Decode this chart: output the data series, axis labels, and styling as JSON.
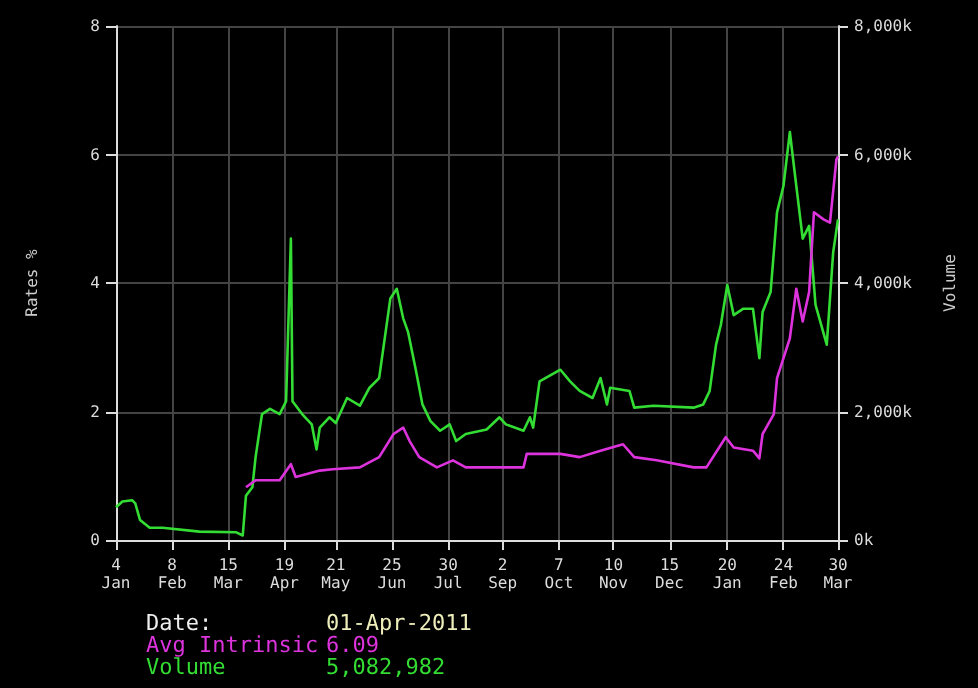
{
  "chart_data": {
    "type": "line",
    "ylabel": "Rates %",
    "y2label": "Volume",
    "xlim": [
      "2010-01-04",
      "2011-03-30"
    ],
    "xticks": [
      {
        "value": "2010-01-04",
        "label": "4\nJan"
      },
      {
        "value": "2010-02-08",
        "label": "8\nFeb"
      },
      {
        "value": "2010-03-15",
        "label": "15\nMar"
      },
      {
        "value": "2010-04-19",
        "label": "19\nApr"
      },
      {
        "value": "2010-05-21",
        "label": "21\nMay"
      },
      {
        "value": "2010-06-25",
        "label": "25\nJun"
      },
      {
        "value": "2010-07-30",
        "label": "30\nJul"
      },
      {
        "value": "2010-09-02",
        "label": "2\nSep"
      },
      {
        "value": "2010-10-07",
        "label": "7\nOct"
      },
      {
        "value": "2010-11-10",
        "label": "10\nNov"
      },
      {
        "value": "2010-12-15",
        "label": "15\nDec"
      },
      {
        "value": "2011-01-20",
        "label": "20\nJan"
      },
      {
        "value": "2011-02-24",
        "label": "24\nFeb"
      },
      {
        "value": "2011-03-30",
        "label": "30\nMar"
      }
    ],
    "ylim": [
      0,
      8
    ],
    "yticks": [
      0,
      2,
      4,
      6,
      8
    ],
    "y2lim": [
      0,
      8000000
    ],
    "y2ticks": [
      {
        "value": 0,
        "label": "0k"
      },
      {
        "value": 2000000,
        "label": "2,000k"
      },
      {
        "value": 4000000,
        "label": "4,000k"
      },
      {
        "value": 6000000,
        "label": "6,000k"
      },
      {
        "value": 8000000,
        "label": "8,000k"
      }
    ],
    "grid": true,
    "series": [
      {
        "name": "Volume",
        "color": "#33dd33",
        "axis": "y2",
        "x": [
          "2010-01-04",
          "2010-01-08",
          "2010-01-14",
          "2010-01-16",
          "2010-01-19",
          "2010-01-25",
          "2010-02-02",
          "2010-02-25",
          "2010-03-20",
          "2010-03-24",
          "2010-03-26",
          "2010-03-30",
          "2010-04-01",
          "2010-04-05",
          "2010-04-10",
          "2010-04-16",
          "2010-04-20",
          "2010-04-23",
          "2010-04-24",
          "2010-04-30",
          "2010-05-06",
          "2010-05-09",
          "2010-05-11",
          "2010-05-17",
          "2010-05-21",
          "2010-05-28",
          "2010-06-05",
          "2010-06-11",
          "2010-06-17",
          "2010-06-24",
          "2010-06-28",
          "2010-07-02",
          "2010-07-05",
          "2010-07-10",
          "2010-07-14",
          "2010-07-19",
          "2010-07-25",
          "2010-07-31",
          "2010-08-04",
          "2010-08-10",
          "2010-08-23",
          "2010-08-31",
          "2010-09-04",
          "2010-09-15",
          "2010-09-19",
          "2010-09-21",
          "2010-09-25",
          "2010-10-08",
          "2010-10-14",
          "2010-10-20",
          "2010-10-28",
          "2010-11-02",
          "2010-11-06",
          "2010-11-08",
          "2010-11-20",
          "2010-11-23",
          "2010-12-05",
          "2010-12-30",
          "2011-01-05",
          "2011-01-09",
          "2011-01-13",
          "2011-01-16",
          "2011-01-20",
          "2011-01-24",
          "2011-01-30",
          "2011-02-05",
          "2011-02-09",
          "2011-02-11",
          "2011-02-16",
          "2011-02-20",
          "2011-02-24",
          "2011-02-28",
          "2011-03-03",
          "2011-03-08",
          "2011-03-12",
          "2011-03-16",
          "2011-03-23",
          "2011-03-27",
          "2011-03-30"
        ],
        "values": [
          510000,
          600000,
          620000,
          570000,
          310000,
          190000,
          190000,
          130000,
          120000,
          70000,
          690000,
          820000,
          1290000,
          1960000,
          2040000,
          1960000,
          2160000,
          4690000,
          2160000,
          1960000,
          1800000,
          1410000,
          1750000,
          1910000,
          1820000,
          2210000,
          2090000,
          2370000,
          2520000,
          3760000,
          3910000,
          3450000,
          3240000,
          2630000,
          2110000,
          1850000,
          1700000,
          1800000,
          1540000,
          1650000,
          1720000,
          1910000,
          1800000,
          1700000,
          1910000,
          1750000,
          2470000,
          2650000,
          2470000,
          2320000,
          2210000,
          2520000,
          2110000,
          2370000,
          2320000,
          2060000,
          2090000,
          2060000,
          2110000,
          2320000,
          3040000,
          3350000,
          3970000,
          3500000,
          3600000,
          3600000,
          2830000,
          3550000,
          3860000,
          5100000,
          5510000,
          6350000,
          5720000,
          4690000,
          4890000,
          3660000,
          3040000,
          4480000,
          4990000
        ]
      },
      {
        "name": "Avg Intrinsic",
        "color": "#dd33dd",
        "x": [
          "2010-03-26",
          "2010-04-01",
          "2010-04-16",
          "2010-04-23",
          "2010-04-26",
          "2010-05-11",
          "2010-05-19",
          "2010-06-05",
          "2010-06-17",
          "2010-06-26",
          "2010-07-02",
          "2010-07-06",
          "2010-07-12",
          "2010-07-23",
          "2010-08-02",
          "2010-08-10",
          "2010-09-08",
          "2010-09-15",
          "2010-09-17",
          "2010-10-08",
          "2010-10-20",
          "2010-11-02",
          "2010-11-16",
          "2010-11-23",
          "2010-12-07",
          "2010-12-30",
          "2011-01-07",
          "2011-01-19",
          "2011-01-24",
          "2011-02-05",
          "2011-02-09",
          "2011-02-11",
          "2011-02-18",
          "2011-02-20",
          "2011-02-28",
          "2011-03-04",
          "2011-03-08",
          "2011-03-12",
          "2011-03-15",
          "2011-03-21",
          "2011-03-25",
          "2011-03-29",
          "2011-03-30"
        ],
        "values": [
          0.82,
          0.93,
          0.93,
          1.18,
          0.98,
          1.08,
          1.1,
          1.13,
          1.29,
          1.65,
          1.75,
          1.54,
          1.29,
          1.13,
          1.24,
          1.13,
          1.13,
          1.13,
          1.34,
          1.34,
          1.29,
          1.39,
          1.49,
          1.29,
          1.24,
          1.13,
          1.13,
          1.6,
          1.44,
          1.39,
          1.27,
          1.65,
          1.96,
          2.52,
          3.14,
          3.91,
          3.4,
          3.86,
          5.1,
          4.99,
          4.94,
          5.92,
          5.97
        ]
      }
    ],
    "annotations": [
      "Date:",
      "01-Apr-2011",
      "6.09",
      "5,082,982"
    ]
  }
}
